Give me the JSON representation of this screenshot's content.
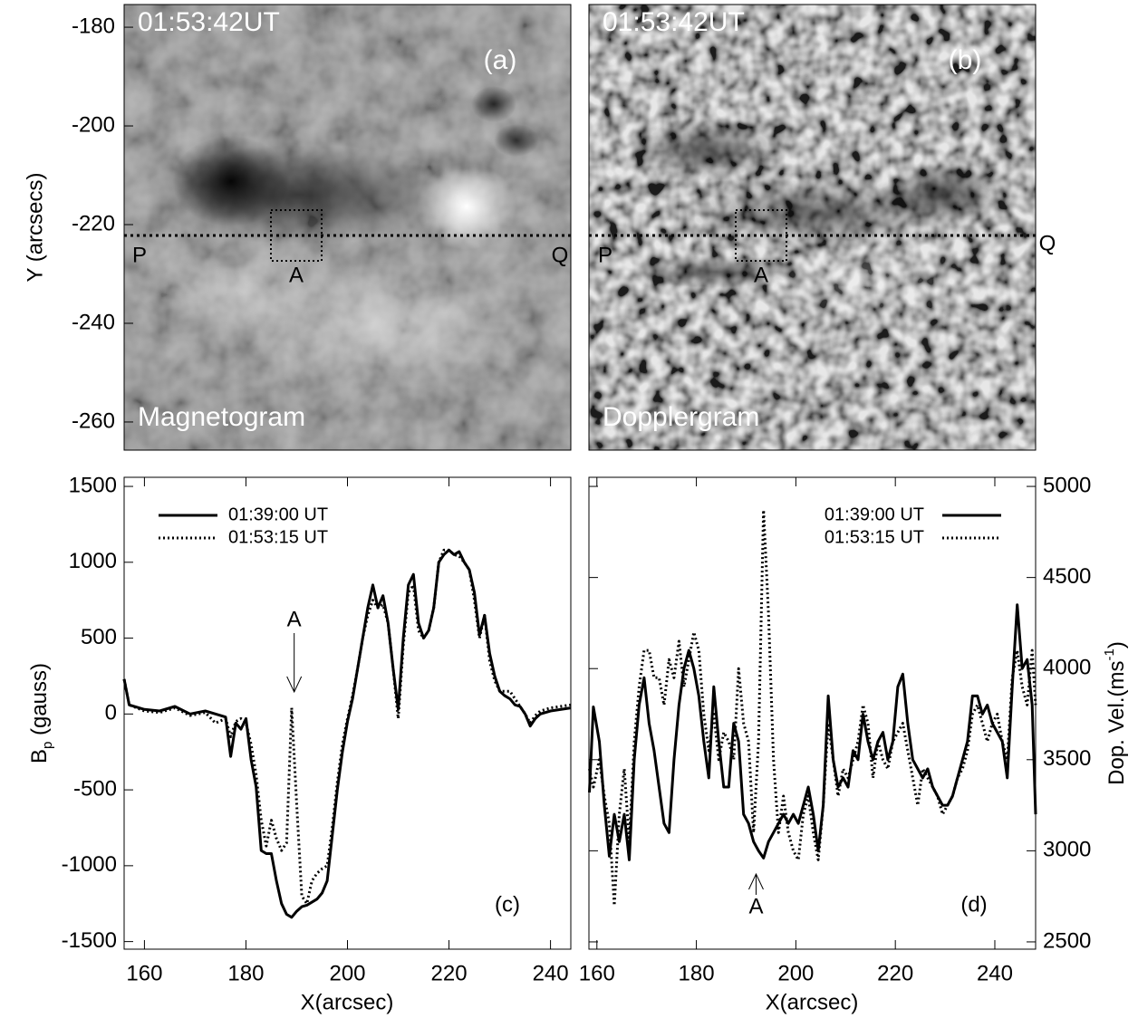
{
  "chart_data": [
    {
      "type": "image",
      "style": "magnetogram",
      "time_label": "01:53:42UT",
      "panel_label": "(a)",
      "title": "Magnetogram",
      "ylabel": "Y (arcsecs)",
      "ylim": [
        -265.7,
        -175.4
      ],
      "yticks": [
        -180,
        -200,
        -220,
        -240,
        -260
      ],
      "cut_y": -222.2,
      "cut_label_start": "P",
      "cut_label_end": "Q",
      "box_label": "A"
    },
    {
      "type": "image",
      "style": "dopplergram",
      "time_label": "01:53:42UT",
      "panel_label": "(b)",
      "title": "Dopplergram",
      "ylim": [
        -265.7,
        -175.4
      ],
      "cut_y": -222.2,
      "cut_label_start": "P",
      "cut_label_end": "Q",
      "box_label": "A"
    },
    {
      "type": "line",
      "panel_label": "(c)",
      "xlabel": "X(arcsec)",
      "ylabel": [
        "B",
        "p",
        " (gauss)"
      ],
      "xlim": [
        156,
        244
      ],
      "xticks": [
        160,
        180,
        200,
        220,
        240
      ],
      "ylim": [
        -1550,
        1560
      ],
      "yticks": [
        -1500,
        -1000,
        -500,
        0,
        500,
        1000,
        1500
      ],
      "legend": "upper left",
      "annotations": [
        {
          "label": "A",
          "x": 189.5,
          "arrow": "down"
        }
      ],
      "x": [
        156,
        157,
        160,
        163,
        166,
        169,
        172,
        174,
        176,
        177,
        178,
        179,
        180,
        181,
        182,
        183,
        184,
        185,
        186,
        187,
        188,
        189,
        190,
        191,
        192,
        193,
        194,
        195,
        196,
        197,
        198,
        199,
        200,
        201,
        202,
        203,
        204,
        205,
        206,
        207,
        208,
        209,
        210,
        211,
        212,
        213,
        214,
        215,
        216,
        217,
        218,
        219,
        220,
        221,
        222,
        223,
        224,
        225,
        226,
        227,
        228,
        229,
        230,
        231,
        232,
        233,
        234,
        235,
        236,
        237,
        238,
        240,
        244
      ],
      "series": [
        {
          "name": "01:39:00 UT",
          "color": "#000000",
          "style": "solid",
          "values": [
            230,
            60,
            30,
            20,
            50,
            0,
            20,
            0,
            -20,
            -280,
            -60,
            -100,
            -30,
            -300,
            -480,
            -900,
            -920,
            -920,
            -1100,
            -1250,
            -1320,
            -1340,
            -1300,
            -1270,
            -1260,
            -1240,
            -1220,
            -1180,
            -1100,
            -800,
            -500,
            -250,
            -50,
            100,
            300,
            500,
            700,
            850,
            700,
            780,
            600,
            300,
            30,
            500,
            850,
            920,
            600,
            500,
            550,
            700,
            1000,
            1050,
            1080,
            1050,
            1070,
            1000,
            950,
            800,
            520,
            650,
            400,
            250,
            150,
            120,
            100,
            60,
            50,
            0,
            -80,
            -30,
            0,
            20,
            40
          ]
        },
        {
          "name": "01:53:15 UT",
          "color": "#000000",
          "style": "dotted",
          "values": [
            230,
            60,
            20,
            10,
            40,
            -10,
            10,
            -60,
            -30,
            -150,
            -50,
            -30,
            -60,
            -200,
            -400,
            -700,
            -870,
            -700,
            -820,
            -900,
            -850,
            40,
            -600,
            -1200,
            -1250,
            -1100,
            -1050,
            -1020,
            -1000,
            -750,
            -450,
            -200,
            -30,
            120,
            300,
            500,
            650,
            750,
            700,
            720,
            600,
            300,
            -30,
            450,
            800,
            850,
            550,
            500,
            550,
            700,
            1000,
            1080,
            1080,
            1050,
            1040,
            1000,
            950,
            750,
            500,
            650,
            350,
            220,
            150,
            150,
            150,
            100,
            50,
            0,
            -60,
            -10,
            20,
            40,
            60
          ]
        }
      ]
    },
    {
      "type": "line",
      "panel_label": "(d)",
      "xlabel": "X(arcsec)",
      "ylabel": [
        "Dop. Vel.(ms",
        "-1",
        ")"
      ],
      "xlim": [
        158.4,
        248.2
      ],
      "xticks": [
        160,
        180,
        200,
        220,
        240
      ],
      "y2lim": [
        2460,
        5050
      ],
      "y2ticks": [
        2500,
        3000,
        3500,
        4000,
        4500,
        5000
      ],
      "legend": "upper right",
      "annotations": [
        {
          "label": "A",
          "x": 192,
          "arrow": "up"
        }
      ],
      "x": [
        158.5,
        159.3,
        160.5,
        161.5,
        162.5,
        163.5,
        164.5,
        165.5,
        166.5,
        167.5,
        168.5,
        169.5,
        170.5,
        171.5,
        172.5,
        173.5,
        174.5,
        175.5,
        176.5,
        177.5,
        178.5,
        179.5,
        180.5,
        181.5,
        182.5,
        183.5,
        184.5,
        185.5,
        186.5,
        187.5,
        188.5,
        189.5,
        190.5,
        191.5,
        192.5,
        193.5,
        194.5,
        195.5,
        196.5,
        197.5,
        198.5,
        199.5,
        200.5,
        201.5,
        202.5,
        203.5,
        204.5,
        205.5,
        206.5,
        207.5,
        208.5,
        209.5,
        210.5,
        211.5,
        212.5,
        213.5,
        214.5,
        215.5,
        216.5,
        217.5,
        218.5,
        219.5,
        220.5,
        221.5,
        222.5,
        223.5,
        224.5,
        225.5,
        226.5,
        227.5,
        228.5,
        229.5,
        230.5,
        231.5,
        232.5,
        233.5,
        234.5,
        235.5,
        236.5,
        237.5,
        238.5,
        239.5,
        240.5,
        241.5,
        242.5,
        243.5,
        244.5,
        245.5,
        246.5,
        247.5,
        248.2
      ],
      "series": [
        {
          "name": "01:39:00 UT",
          "color": "#000000",
          "style": "solid",
          "axis": "y2",
          "values": [
            3320,
            3790,
            3600,
            3250,
            2970,
            3200,
            3050,
            3200,
            2950,
            3500,
            3800,
            3950,
            3700,
            3550,
            3350,
            3150,
            3100,
            3500,
            3800,
            4000,
            4100,
            4000,
            3850,
            3600,
            3400,
            3900,
            3600,
            3350,
            3350,
            3700,
            3600,
            3200,
            3150,
            3050,
            3000,
            2960,
            3050,
            3100,
            3150,
            3200,
            3150,
            3200,
            3150,
            3250,
            3350,
            3200,
            3000,
            3250,
            3850,
            3500,
            3350,
            3400,
            3350,
            3550,
            3500,
            3750,
            3600,
            3500,
            3600,
            3650,
            3500,
            3600,
            3900,
            3970,
            3700,
            3500,
            3450,
            3400,
            3450,
            3350,
            3300,
            3250,
            3250,
            3300,
            3400,
            3500,
            3600,
            3850,
            3850,
            3750,
            3800,
            3700,
            3650,
            3600,
            3400,
            3900,
            4350,
            4000,
            4050,
            3800,
            3200
          ]
        },
        {
          "name": "01:53:15 UT",
          "color": "#000000",
          "style": "dotted",
          "axis": "y2",
          "values": [
            3450,
            3350,
            3500,
            3300,
            3150,
            2700,
            3200,
            3450,
            3050,
            3600,
            3900,
            4100,
            4100,
            3950,
            3950,
            3800,
            4050,
            3950,
            4150,
            3900,
            4050,
            4200,
            4100,
            3750,
            3550,
            3750,
            3500,
            3650,
            3600,
            3500,
            4000,
            3700,
            3600,
            3100,
            3600,
            4870,
            4300,
            3500,
            3100,
            3300,
            3100,
            3000,
            2950,
            3200,
            3300,
            3100,
            2950,
            3250,
            3700,
            3500,
            3300,
            3450,
            3400,
            3500,
            3600,
            3800,
            3700,
            3400,
            3600,
            3500,
            3450,
            3600,
            3650,
            3700,
            3550,
            3400,
            3250,
            3450,
            3400,
            3350,
            3300,
            3200,
            3250,
            3300,
            3400,
            3450,
            3550,
            3750,
            3800,
            3700,
            3600,
            3700,
            3750,
            3600,
            3500,
            3950,
            4100,
            3900,
            3800,
            4100,
            3800
          ]
        }
      ]
    }
  ]
}
